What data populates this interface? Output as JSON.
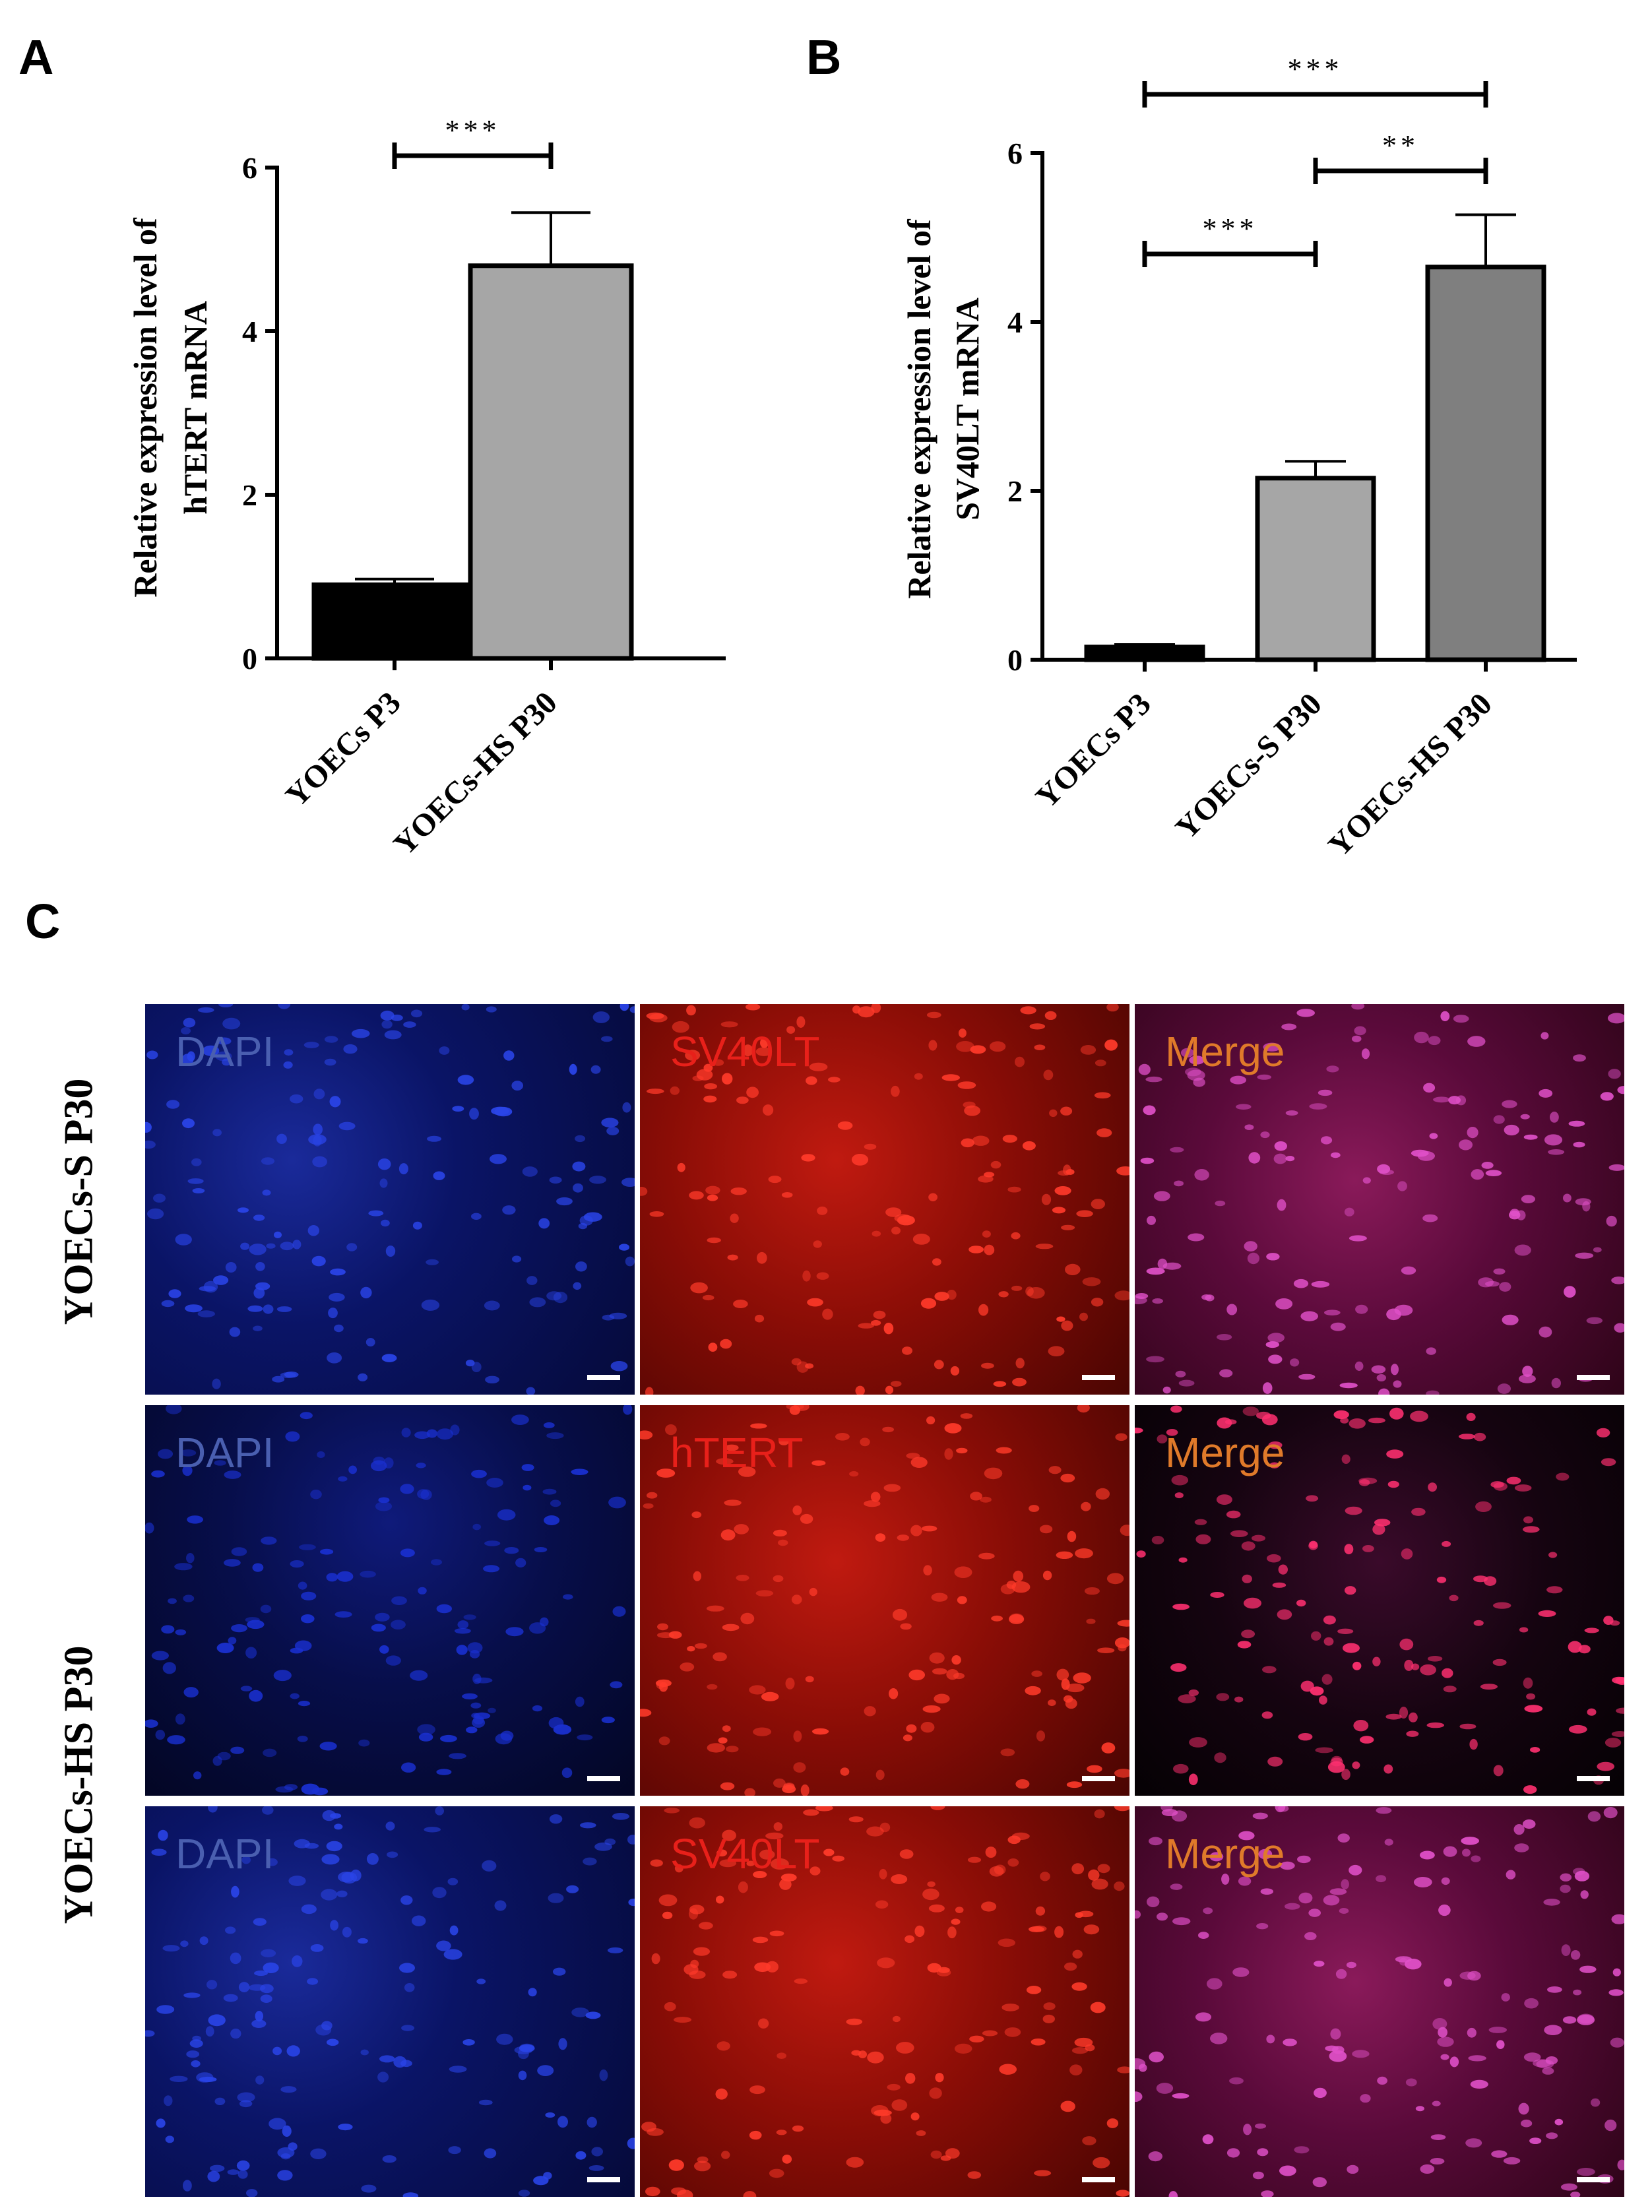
{
  "panel_letters": {
    "a": "A",
    "b": "B",
    "c": "C"
  },
  "chart_data": [
    {
      "type": "bar",
      "panel": "A",
      "ylabel_line1": "Relative expression level of",
      "ylabel_line2": "hTERT mRNA",
      "categories": [
        "YOECs P3",
        "YOECs-HS P30"
      ],
      "values": [
        0.9,
        4.8
      ],
      "errors": [
        0.07,
        0.65
      ],
      "bar_colors": [
        "#000000",
        "#a6a6a6"
      ],
      "ylim": [
        0,
        6
      ],
      "yticks": [
        "0",
        "2",
        "4",
        "6"
      ],
      "significance": [
        {
          "from": 0,
          "to": 1,
          "label": "***"
        }
      ]
    },
    {
      "type": "bar",
      "panel": "B",
      "ylabel_line1": "Relative expression level of",
      "ylabel_line2": "SV40LT mRNA",
      "categories": [
        "YOECs P3",
        "YOECs-S P30",
        "YOECs-HS P30"
      ],
      "values": [
        0.15,
        2.15,
        4.65
      ],
      "errors": [
        0.03,
        0.2,
        0.62
      ],
      "bar_colors": [
        "#000000",
        "#a6a6a6",
        "#7f7f7f"
      ],
      "ylim": [
        0,
        6
      ],
      "yticks": [
        "0",
        "2",
        "4",
        "6"
      ],
      "significance": [
        {
          "from": 0,
          "to": 2,
          "label": "***"
        },
        {
          "from": 1,
          "to": 2,
          "label": "**"
        },
        {
          "from": 0,
          "to": 1,
          "label": "***"
        }
      ]
    }
  ],
  "panel_c": {
    "row_labels": {
      "group1": "YOECs-S P30",
      "group2": "YOECs-HS P30"
    },
    "rows": [
      {
        "cells": [
          {
            "label": "DAPI",
            "label_color": "#4a5fb0",
            "stain": "blue"
          },
          {
            "label": "SV40LT",
            "label_color": "#e8201a",
            "stain": "red"
          },
          {
            "label": "Merge",
            "label_color": "#e07a2a",
            "stain": "merge"
          }
        ]
      },
      {
        "cells": [
          {
            "label": "DAPI",
            "label_color": "#4a5fb0",
            "stain": "blue-dark"
          },
          {
            "label": "hTERT",
            "label_color": "#e8201a",
            "stain": "red"
          },
          {
            "label": "Merge",
            "label_color": "#e07a2a",
            "stain": "merge-dark"
          }
        ]
      },
      {
        "cells": [
          {
            "label": "DAPI",
            "label_color": "#4a5fb0",
            "stain": "blue"
          },
          {
            "label": "SV40LT",
            "label_color": "#e8201a",
            "stain": "red"
          },
          {
            "label": "Merge",
            "label_color": "#e07a2a",
            "stain": "merge"
          }
        ]
      }
    ]
  }
}
